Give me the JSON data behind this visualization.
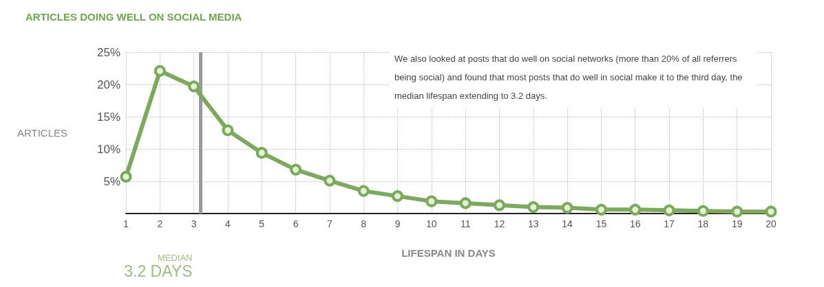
{
  "chart_data": {
    "type": "line",
    "title": "ARTICLES DOING WELL ON SOCIAL MEDIA",
    "xlabel": "LIFESPAN IN DAYS",
    "ylabel": "ARTICLES",
    "x": [
      1,
      2,
      3,
      4,
      5,
      6,
      7,
      8,
      9,
      10,
      11,
      12,
      13,
      14,
      15,
      16,
      17,
      18,
      19,
      20
    ],
    "series": [
      {
        "color": "#7aab5a",
        "values": [
          5.7,
          22.1,
          19.7,
          12.9,
          9.4,
          6.8,
          5.1,
          3.5,
          2.7,
          1.9,
          1.6,
          1.3,
          1.0,
          0.9,
          0.6,
          0.6,
          0.5,
          0.4,
          0.3,
          0.3
        ]
      }
    ],
    "xlim": [
      1,
      20
    ],
    "xticks": [
      1,
      2,
      3,
      4,
      5,
      6,
      7,
      8,
      9,
      10,
      11,
      12,
      13,
      14,
      15,
      16,
      17,
      18,
      19,
      20
    ],
    "ylim": [
      0,
      25
    ],
    "yticks": [
      {
        "value": 5,
        "label": "5%"
      },
      {
        "value": 10,
        "label": "10%"
      },
      {
        "value": 15,
        "label": "15%"
      },
      {
        "value": 20,
        "label": "20%"
      },
      {
        "value": 25,
        "label": "25%"
      }
    ],
    "ref_lines": [
      {
        "axis": "x",
        "value": 3.2,
        "label": "MEDIAN",
        "color": "#9a9a9a"
      }
    ],
    "annotations": [
      "3.2 DAYS",
      "We also looked at posts that do well on social networks (more than 20% of all referrers being social) and found that most posts that do well in social make it to the third day, the median lifespan extending to 3.2 days."
    ],
    "grid": true,
    "marker": "circle",
    "line_style": "solid"
  }
}
